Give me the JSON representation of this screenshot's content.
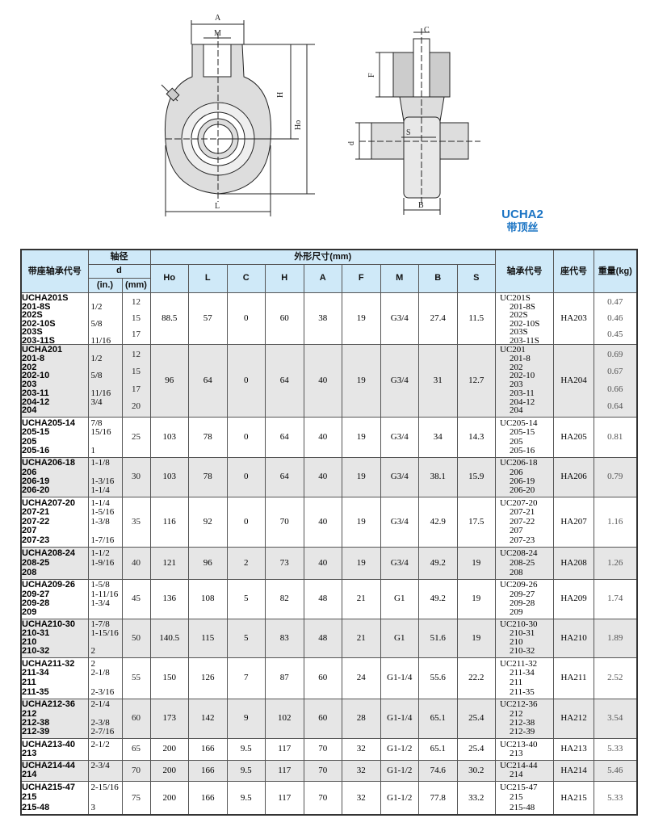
{
  "drawing": {
    "labels": {
      "A": "A",
      "M": "M",
      "H": "H",
      "Ho": "Ho",
      "L": "L",
      "C": "C",
      "F": "F",
      "d": "d",
      "S": "S",
      "B": "B"
    }
  },
  "series": {
    "code": "UCHA2",
    "note": "带顶丝"
  },
  "colors": {
    "header_bg": "#cfe9f8",
    "alt_row": "#e6e6e6",
    "title": "#1b74c4"
  },
  "table": {
    "headers": {
      "model": "带座轴承代号",
      "shaft": "轴径",
      "d": "d",
      "in": "(in.)",
      "mm": "(mm)",
      "dims": "外形尺寸(mm)",
      "dim_cols": [
        "Ho",
        "L",
        "C",
        "H",
        "A",
        "F",
        "M",
        "B",
        "S"
      ],
      "bearing": "轴承代号",
      "housing": "座代号",
      "weight": "重量(kg)"
    },
    "rows": [
      {
        "model": [
          "UCHA201S",
          "201-8S",
          "202S",
          "202-10S",
          "203S",
          "203-11S"
        ],
        "in": [
          "",
          "1/2",
          "",
          "5/8",
          "",
          "11/16"
        ],
        "mm": [
          "12",
          "15",
          "17"
        ],
        "dims": [
          "88.5",
          "57",
          "0",
          "60",
          "38",
          "19",
          "G3/4",
          "27.4",
          "11.5"
        ],
        "bearing": [
          "UC201S",
          "201-8S",
          "202S",
          "202-10S",
          "203S",
          "203-11S"
        ],
        "housing": "HA203",
        "weight": [
          "0.47",
          "0.46",
          "0.45"
        ]
      },
      {
        "model": [
          "UCHA201",
          "201-8",
          "202",
          "202-10",
          "203",
          "203-11",
          "204-12",
          "204"
        ],
        "in": [
          "",
          "1/2",
          "",
          "5/8",
          "",
          "11/16",
          "3/4",
          ""
        ],
        "mm": [
          "12",
          "15",
          "17",
          "20"
        ],
        "dims": [
          "96",
          "64",
          "0",
          "64",
          "40",
          "19",
          "G3/4",
          "31",
          "12.7"
        ],
        "bearing": [
          "UC201",
          "201-8",
          "202",
          "202-10",
          "203",
          "203-11",
          "204-12",
          "204"
        ],
        "housing": "HA204",
        "weight": [
          "0.69",
          "0.67",
          "0.66",
          "0.64"
        ]
      },
      {
        "model": [
          "UCHA205-14",
          "205-15",
          "205",
          "205-16"
        ],
        "in": [
          "7/8",
          "15/16",
          "",
          "1"
        ],
        "mm": [
          "25"
        ],
        "dims": [
          "103",
          "78",
          "0",
          "64",
          "40",
          "19",
          "G3/4",
          "34",
          "14.3"
        ],
        "bearing": [
          "UC205-14",
          "205-15",
          "205",
          "205-16"
        ],
        "housing": "HA205",
        "weight": [
          "0.81"
        ]
      },
      {
        "model": [
          "UCHA206-18",
          "206",
          "206-19",
          "206-20"
        ],
        "in": [
          "1-1/8",
          "",
          "1-3/16",
          "1-1/4"
        ],
        "mm": [
          "30"
        ],
        "dims": [
          "103",
          "78",
          "0",
          "64",
          "40",
          "19",
          "G3/4",
          "38.1",
          "15.9"
        ],
        "bearing": [
          "UC206-18",
          "206",
          "206-19",
          "206-20"
        ],
        "housing": "HA206",
        "weight": [
          "0.79"
        ]
      },
      {
        "model": [
          "UCHA207-20",
          "207-21",
          "207-22",
          "207",
          "207-23"
        ],
        "in": [
          "1-1/4",
          "1-5/16",
          "1-3/8",
          "",
          "1-7/16"
        ],
        "mm": [
          "35"
        ],
        "dims": [
          "116",
          "92",
          "0",
          "70",
          "40",
          "19",
          "G3/4",
          "42.9",
          "17.5"
        ],
        "bearing": [
          "UC207-20",
          "207-21",
          "207-22",
          "207",
          "207-23"
        ],
        "housing": "HA207",
        "weight": [
          "1.16"
        ]
      },
      {
        "model": [
          "UCHA208-24",
          "208-25",
          "208"
        ],
        "in": [
          "1-1/2",
          "1-9/16",
          ""
        ],
        "mm": [
          "40"
        ],
        "dims": [
          "121",
          "96",
          "2",
          "73",
          "40",
          "19",
          "G3/4",
          "49.2",
          "19"
        ],
        "bearing": [
          "UC208-24",
          "208-25",
          "208"
        ],
        "housing": "HA208",
        "weight": [
          "1.26"
        ]
      },
      {
        "model": [
          "UCHA209-26",
          "209-27",
          "209-28",
          "209"
        ],
        "in": [
          "1-5/8",
          "1-11/16",
          "1-3/4",
          ""
        ],
        "mm": [
          "45"
        ],
        "dims": [
          "136",
          "108",
          "5",
          "82",
          "48",
          "21",
          "G1",
          "49.2",
          "19"
        ],
        "bearing": [
          "UC209-26",
          "209-27",
          "209-28",
          "209"
        ],
        "housing": "HA209",
        "weight": [
          "1.74"
        ]
      },
      {
        "model": [
          "UCHA210-30",
          "210-31",
          "210",
          "210-32"
        ],
        "in": [
          "1-7/8",
          "1-15/16",
          "",
          "2"
        ],
        "mm": [
          "50"
        ],
        "dims": [
          "140.5",
          "115",
          "5",
          "83",
          "48",
          "21",
          "G1",
          "51.6",
          "19"
        ],
        "bearing": [
          "UC210-30",
          "210-31",
          "210",
          "210-32"
        ],
        "housing": "HA210",
        "weight": [
          "1.89"
        ]
      },
      {
        "model": [
          "UCHA211-32",
          "211-34",
          "211",
          "211-35"
        ],
        "in": [
          "2",
          "2-1/8",
          "",
          "2-3/16"
        ],
        "mm": [
          "55"
        ],
        "dims": [
          "150",
          "126",
          "7",
          "87",
          "60",
          "24",
          "G1-1/4",
          "55.6",
          "22.2"
        ],
        "bearing": [
          "UC211-32",
          "211-34",
          "211",
          "211-35"
        ],
        "housing": "HA211",
        "weight": [
          "2.52"
        ]
      },
      {
        "model": [
          "UCHA212-36",
          "212",
          "212-38",
          "212-39"
        ],
        "in": [
          "2-1/4",
          "",
          "2-3/8",
          "2-7/16"
        ],
        "mm": [
          "60"
        ],
        "dims": [
          "173",
          "142",
          "9",
          "102",
          "60",
          "28",
          "G1-1/4",
          "65.1",
          "25.4"
        ],
        "bearing": [
          "UC212-36",
          "212",
          "212-38",
          "212-39"
        ],
        "housing": "HA212",
        "weight": [
          "3.54"
        ]
      },
      {
        "model": [
          "UCHA213-40",
          "213"
        ],
        "in": [
          "2-1/2",
          ""
        ],
        "mm": [
          "65"
        ],
        "dims": [
          "200",
          "166",
          "9.5",
          "117",
          "70",
          "32",
          "G1-1/2",
          "65.1",
          "25.4"
        ],
        "bearing": [
          "UC213-40",
          "213"
        ],
        "housing": "HA213",
        "weight": [
          "5.33"
        ]
      },
      {
        "model": [
          "UCHA214-44",
          "214"
        ],
        "in": [
          "2-3/4",
          ""
        ],
        "mm": [
          "70"
        ],
        "dims": [
          "200",
          "166",
          "9.5",
          "117",
          "70",
          "32",
          "G1-1/2",
          "74.6",
          "30.2"
        ],
        "bearing": [
          "UC214-44",
          "214"
        ],
        "housing": "HA214",
        "weight": [
          "5.46"
        ]
      },
      {
        "model": [
          "UCHA215-47",
          "215",
          "215-48"
        ],
        "in": [
          "2-15/16",
          "",
          "3"
        ],
        "mm": [
          "75"
        ],
        "dims": [
          "200",
          "166",
          "9.5",
          "117",
          "70",
          "32",
          "G1-1/2",
          "77.8",
          "33.2"
        ],
        "bearing": [
          "UC215-47",
          "215",
          "215-48"
        ],
        "housing": "HA215",
        "weight": [
          "5.33"
        ]
      }
    ]
  }
}
